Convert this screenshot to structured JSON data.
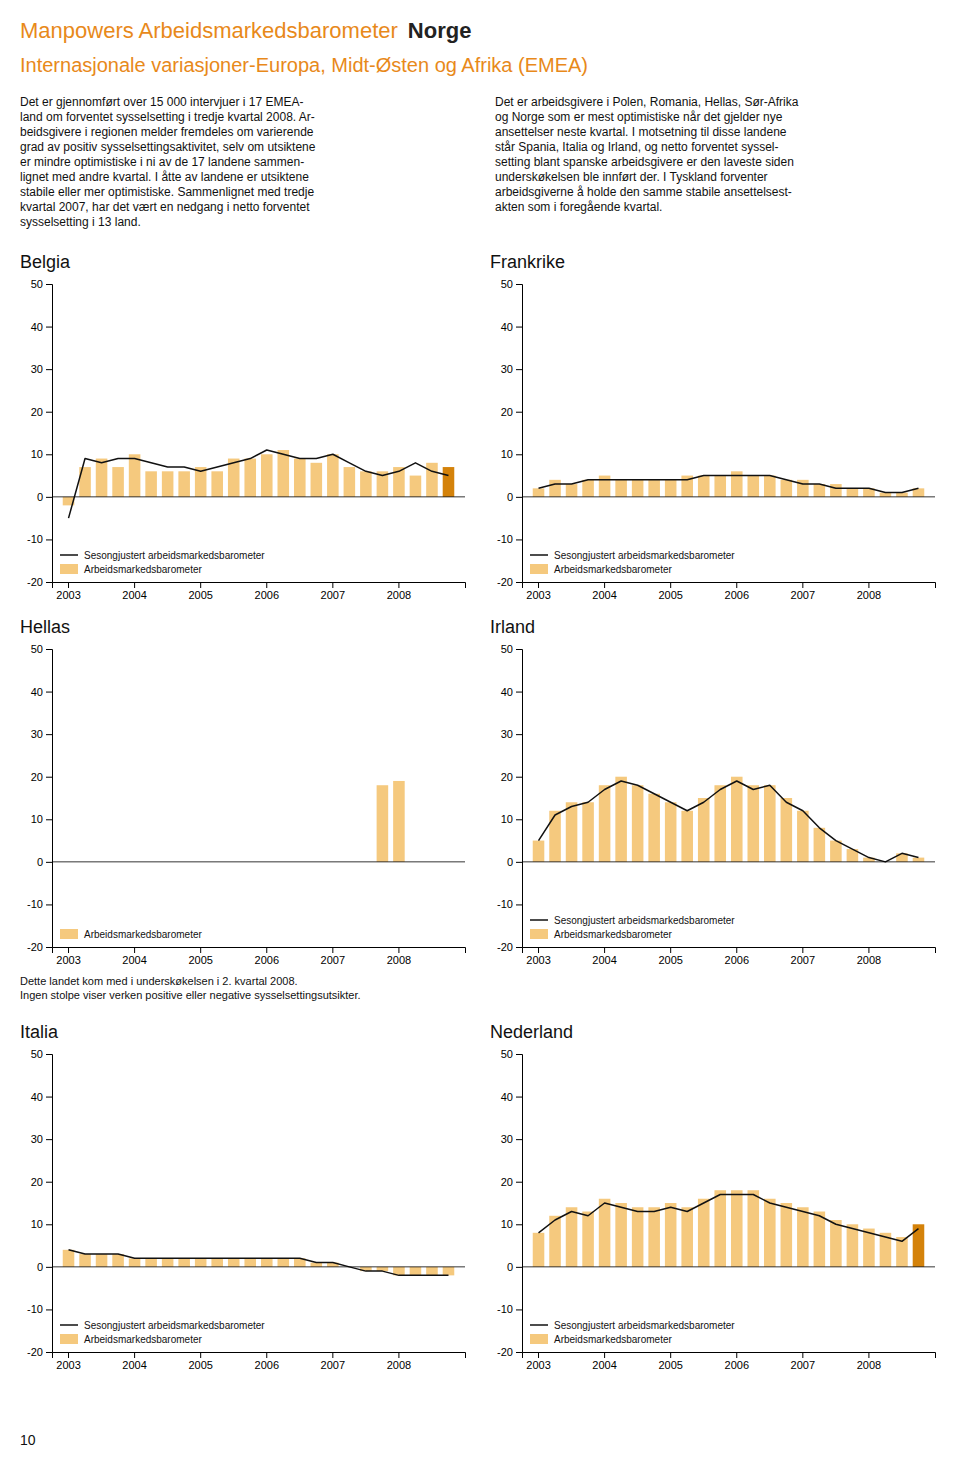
{
  "title": "Manpowers Arbeidsmarkedsbarometer",
  "subtitle": "Internasjonale variasjoner-Europa, Midt-Østen og Afrika (EMEA)",
  "color": "#e8891a",
  "annotations": [
    {
      "text": "Norge",
      "color": "#222222"
    },
    {
      "text": "Det er gjennomført over 15 000 intervjuer i 17 EMEA-\nland om forventet sysselsetting i tredje kvartal 2008. Ar-\nbeidsgivere i regionen melder fremdeles om varierende\ngrad av positiv sysselsettingsaktivitet, selv om utsiktene\ner mindre optimistiske i ni av de 17 landene sammen-\nlignet med andre kvartal. I åtte av landene er utsiktene\nstabile eller mer optimistiske. Sammenlignet med tredje\nkvartal 2007, har det vært en nedgang i netto forventet\nsysselsetting i 13 land."
    },
    {
      "text": "Det er arbeidsgivere i Polen, Romania, Hellas, Sør-Afrika\nog Norge som er mest optimistiske når det gjelder nye\nansettelser neste kvartal. I motsetning til disse landene\nstår Spania, Italia og Irland, og netto forventet syssel-\nsetting blant spanske arbeidsgivere er den laveste siden\nunderskøkelsen ble innført der. I Tyskland forventer\narbeidsgiverne å holde den samme stabile ansettelsest-\nakten som i foregående kvartal."
    },
    {
      "text": "10"
    }
  ],
  "chart_data": [
    {
      "type": "bar",
      "title": "Belgia",
      "categories": [
        "2003",
        null,
        null,
        null,
        "2004",
        null,
        null,
        null,
        "2005",
        null,
        null,
        null,
        "2006",
        null,
        null,
        null,
        "2007",
        null,
        null,
        null,
        "2008",
        null,
        null,
        null
      ],
      "series": [
        {
          "name": "Arbeidsmarkedsbarometer",
          "type": "bar",
          "color": "#f5c97e",
          "colors": [
            "#f5c97e",
            "#f5c97e",
            "#f5c97e",
            "#f5c97e",
            "#f5c97e",
            "#f5c97e",
            "#f5c97e",
            "#f5c97e",
            "#f5c97e",
            "#f5c97e",
            "#f5c97e",
            "#f5c97e",
            "#f5c97e",
            "#f5c97e",
            "#f5c97e",
            "#f5c97e",
            "#f5c97e",
            "#f5c97e",
            "#f5c97e",
            "#f5c97e",
            "#f5c97e",
            "#f5c97e",
            "#f5c97e",
            "#d4820a"
          ],
          "values": [
            -2,
            7,
            9,
            7,
            10,
            6,
            6,
            6,
            7,
            6,
            9,
            9,
            10,
            11,
            9,
            8,
            10,
            7,
            6,
            6,
            7,
            5,
            8,
            7
          ]
        },
        {
          "name": "Sesongjustert arbeidsmarkedsbarometer",
          "type": "line",
          "color": "#111111",
          "values": [
            -5,
            9,
            8,
            9,
            9,
            8,
            7,
            7,
            6,
            7,
            8,
            9,
            11,
            10,
            9,
            9,
            10,
            8,
            6,
            5,
            6,
            8,
            6,
            5
          ]
        }
      ],
      "ylim": [
        -20,
        50
      ],
      "yticks": [
        -20,
        -10,
        0,
        10,
        20,
        30,
        40,
        50
      ],
      "grid": false,
      "legend": "lower left"
    },
    {
      "type": "bar",
      "title": "Frankrike",
      "categories": [
        "2003",
        null,
        null,
        null,
        "2004",
        null,
        null,
        null,
        "2005",
        null,
        null,
        null,
        "2006",
        null,
        null,
        null,
        "2007",
        null,
        null,
        null,
        "2008",
        null,
        null,
        null
      ],
      "series": [
        {
          "name": "Arbeidsmarkedsbarometer",
          "type": "bar",
          "color": "#f5c97e",
          "values": [
            2,
            4,
            3,
            4,
            5,
            4,
            4,
            4,
            4,
            5,
            5,
            5,
            6,
            5,
            5,
            4,
            4,
            3,
            3,
            2,
            2,
            1,
            1,
            2
          ]
        },
        {
          "name": "Sesongjustert arbeidsmarkedsbarometer",
          "type": "line",
          "color": "#111111",
          "values": [
            2,
            3,
            3,
            4,
            4,
            4,
            4,
            4,
            4,
            4,
            5,
            5,
            5,
            5,
            5,
            4,
            3,
            3,
            2,
            2,
            2,
            1,
            1,
            2
          ]
        }
      ],
      "ylim": [
        -20,
        50
      ],
      "yticks": [
        -20,
        -10,
        0,
        10,
        20,
        30,
        40,
        50
      ],
      "grid": false,
      "legend": "lower left"
    },
    {
      "type": "bar",
      "title": "Hellas",
      "categories": [
        "2003",
        null,
        null,
        null,
        "2004",
        null,
        null,
        null,
        "2005",
        null,
        null,
        null,
        "2006",
        null,
        null,
        null,
        "2007",
        null,
        null,
        null,
        "2008",
        null,
        null,
        null
      ],
      "series": [
        {
          "name": "Arbeidsmarkedsbarometer",
          "type": "bar",
          "color": "#f5c97e",
          "values": [
            0,
            0,
            0,
            0,
            0,
            0,
            0,
            0,
            0,
            0,
            0,
            0,
            0,
            0,
            0,
            0,
            0,
            0,
            0,
            18,
            19,
            0,
            0,
            0
          ]
        }
      ],
      "ylim": [
        -20,
        50
      ],
      "yticks": [
        -20,
        -10,
        0,
        10,
        20,
        30,
        40,
        50
      ],
      "grid": false,
      "legend": "lower left",
      "annotations": [
        "Dette landet kom med i underskøkelsen i 2. kvartal 2008.\nIngen stolpe viser verken positive eller negative sysselsettingsutsikter."
      ]
    },
    {
      "type": "bar",
      "title": "Irland",
      "categories": [
        "2003",
        null,
        null,
        null,
        "2004",
        null,
        null,
        null,
        "2005",
        null,
        null,
        null,
        "2006",
        null,
        null,
        null,
        "2007",
        null,
        null,
        null,
        "2008",
        null,
        null,
        null
      ],
      "series": [
        {
          "name": "Arbeidsmarkedsbarometer",
          "type": "bar",
          "color": "#f5c97e",
          "values": [
            5,
            12,
            14,
            14,
            18,
            20,
            18,
            16,
            14,
            12,
            15,
            18,
            20,
            18,
            18,
            15,
            12,
            8,
            5,
            3,
            1,
            0,
            2,
            1
          ]
        },
        {
          "name": "Sesongjustert arbeidsmarkedsbarometer",
          "type": "line",
          "color": "#111111",
          "values": [
            5,
            11,
            13,
            14,
            17,
            19,
            18,
            16,
            14,
            12,
            14,
            17,
            19,
            17,
            18,
            14,
            12,
            8,
            5,
            3,
            1,
            0,
            2,
            1
          ]
        }
      ],
      "ylim": [
        -20,
        50
      ],
      "yticks": [
        -20,
        -10,
        0,
        10,
        20,
        30,
        40,
        50
      ],
      "grid": false,
      "legend": "lower left"
    },
    {
      "type": "bar",
      "title": "Italia",
      "categories": [
        "2003",
        null,
        null,
        null,
        "2004",
        null,
        null,
        null,
        "2005",
        null,
        null,
        null,
        "2006",
        null,
        null,
        null,
        "2007",
        null,
        null,
        null,
        "2008",
        null,
        null,
        null
      ],
      "series": [
        {
          "name": "Arbeidsmarkedsbarometer",
          "type": "bar",
          "color": "#f5c97e",
          "values": [
            4,
            3,
            3,
            3,
            2,
            2,
            2,
            2,
            2,
            2,
            2,
            2,
            2,
            2,
            2,
            1,
            1,
            0,
            -1,
            -1,
            -2,
            -2,
            -2,
            -2
          ]
        },
        {
          "name": "Sesongjustert arbeidsmarkedsbarometer",
          "type": "line",
          "color": "#111111",
          "values": [
            4,
            3,
            3,
            3,
            2,
            2,
            2,
            2,
            2,
            2,
            2,
            2,
            2,
            2,
            2,
            1,
            1,
            0,
            -1,
            -1,
            -2,
            -2,
            -2,
            -2
          ]
        }
      ],
      "ylim": [
        -20,
        50
      ],
      "yticks": [
        -20,
        -10,
        0,
        10,
        20,
        30,
        40,
        50
      ],
      "grid": false,
      "legend": "lower left"
    },
    {
      "type": "bar",
      "title": "Nederland",
      "categories": [
        "2003",
        null,
        null,
        null,
        "2004",
        null,
        null,
        null,
        "2005",
        null,
        null,
        null,
        "2006",
        null,
        null,
        null,
        "2007",
        null,
        null,
        null,
        "2008",
        null,
        null,
        null
      ],
      "series": [
        {
          "name": "Arbeidsmarkedsbarometer",
          "type": "bar",
          "color": "#f5c97e",
          "colors": [
            "#f5c97e",
            "#f5c97e",
            "#f5c97e",
            "#f5c97e",
            "#f5c97e",
            "#f5c97e",
            "#f5c97e",
            "#f5c97e",
            "#f5c97e",
            "#f5c97e",
            "#f5c97e",
            "#f5c97e",
            "#f5c97e",
            "#f5c97e",
            "#f5c97e",
            "#f5c97e",
            "#f5c97e",
            "#f5c97e",
            "#f5c97e",
            "#f5c97e",
            "#f5c97e",
            "#f5c97e",
            "#f5c97e",
            "#d4820a"
          ],
          "values": [
            8,
            12,
            14,
            13,
            16,
            15,
            14,
            14,
            15,
            14,
            16,
            18,
            18,
            18,
            16,
            15,
            14,
            13,
            11,
            10,
            9,
            8,
            7,
            10
          ]
        },
        {
          "name": "Sesongjustert arbeidsmarkedsbarometer",
          "type": "line",
          "color": "#111111",
          "values": [
            8,
            11,
            13,
            12,
            15,
            14,
            13,
            13,
            14,
            13,
            15,
            17,
            17,
            17,
            15,
            14,
            13,
            12,
            10,
            9,
            8,
            7,
            6,
            9
          ]
        }
      ],
      "ylim": [
        -20,
        50
      ],
      "yticks": [
        -20,
        -10,
        0,
        10,
        20,
        30,
        40,
        50
      ],
      "grid": false,
      "legend": "lower left"
    }
  ]
}
